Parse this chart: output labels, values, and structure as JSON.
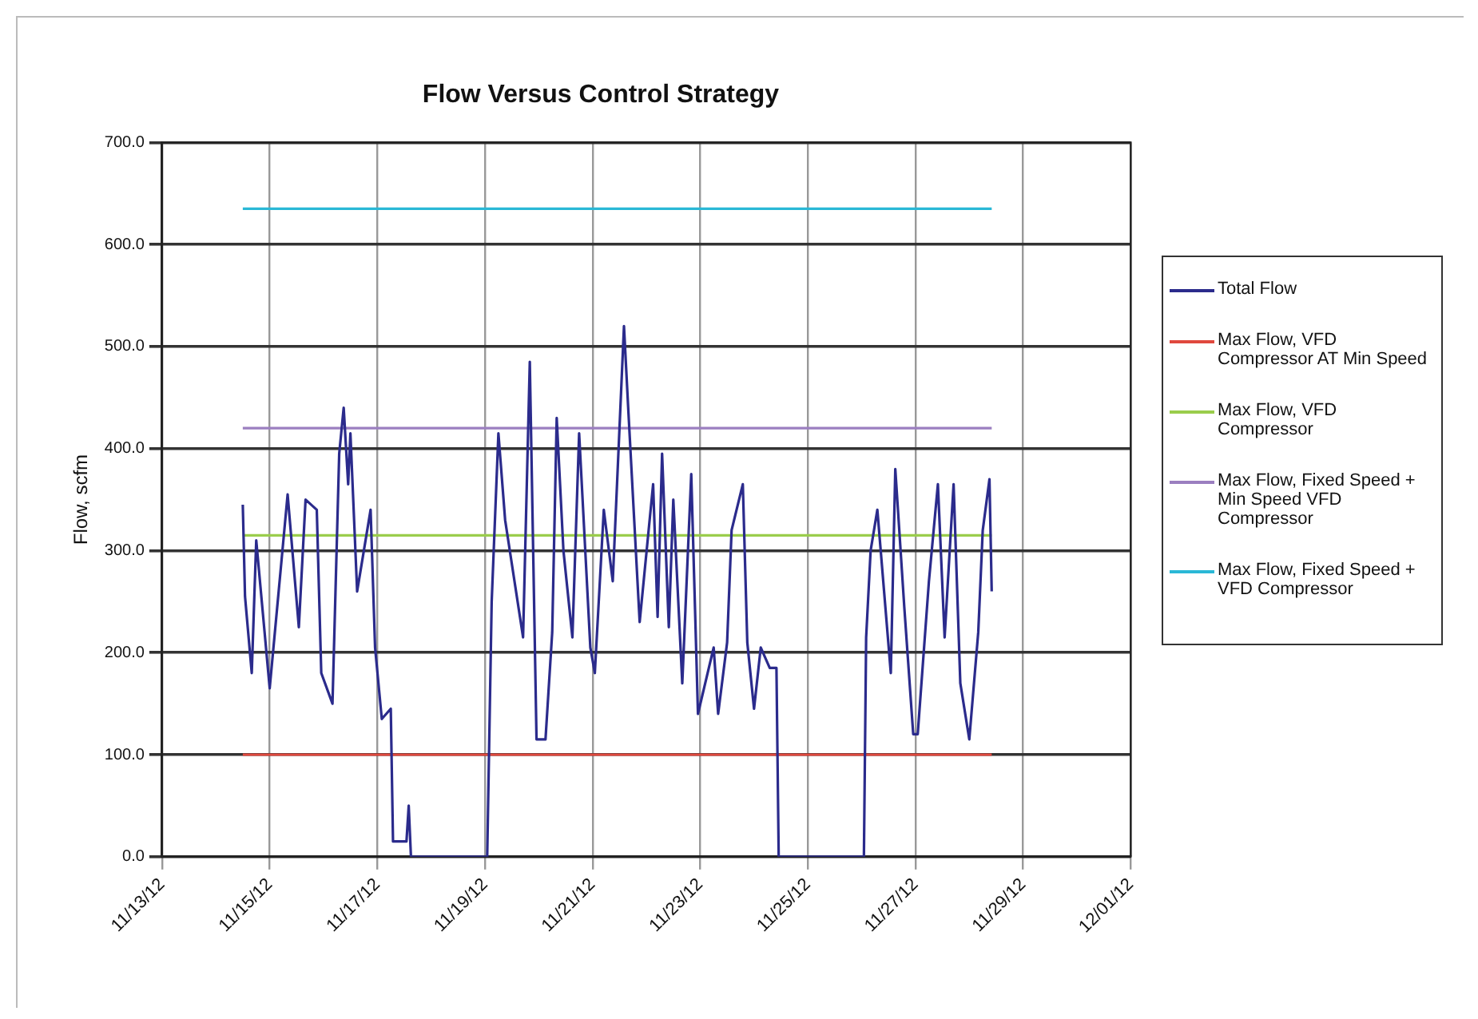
{
  "chart_data": {
    "type": "line",
    "title": "Flow Versus Control Strategy",
    "ylabel": "Flow, scfm",
    "marker": "none",
    "grid": true,
    "legend": "right",
    "xlim": [
      "--11-13",
      "--12-01"
    ],
    "xticks": [
      {
        "value": "--11-13",
        "label": "11/13/12"
      },
      {
        "value": "--11-15",
        "label": "11/15/12"
      },
      {
        "value": "--11-17",
        "label": "11/17/12"
      },
      {
        "value": "--11-19",
        "label": "11/19/12"
      },
      {
        "value": "--11-21",
        "label": "11/21/12"
      },
      {
        "value": "--11-23",
        "label": "11/23/12"
      },
      {
        "value": "--11-25",
        "label": "11/25/12"
      },
      {
        "value": "--11-27",
        "label": "11/27/12"
      },
      {
        "value": "--11-29",
        "label": "11/29/12"
      },
      {
        "value": "--12-01",
        "label": "12/01/12"
      }
    ],
    "ylim": [
      0,
      700
    ],
    "yticks": [
      {
        "value": 0,
        "label": "0.0"
      },
      {
        "value": 100,
        "label": "100.0"
      },
      {
        "value": 200,
        "label": "200.0"
      },
      {
        "value": 300,
        "label": "300.0"
      },
      {
        "value": 400,
        "label": "400.0"
      },
      {
        "value": 500,
        "label": "500.0"
      },
      {
        "value": 600,
        "label": "600.0"
      },
      {
        "value": 700,
        "label": "700.0"
      }
    ],
    "series": [
      {
        "name": "Total Flow",
        "color": "#2b2b8c",
        "x": [
          "--11-14T12:00",
          "--11-14T13:00",
          "--11-14T16:00",
          "--11-14T18:00",
          "--11-15T00:00",
          "--11-15T04:00",
          "--11-15T08:00",
          "--11-15T13:00",
          "--11-15T16:00",
          "--11-15T21:00",
          "--11-15T23:00",
          "--11-16T04:00",
          "--11-16T07:00",
          "--11-16T09:00",
          "--11-16T11:00",
          "--11-16T12:00",
          "--11-16T15:00",
          "--11-16T21:00",
          "--11-16T23:00",
          "--11-17T02:00",
          "--11-17T06:00",
          "--11-17T07:00",
          "--11-17T13:00",
          "--11-17T14:00",
          "--11-17T15:00",
          "--11-19T01:00",
          "--11-19T03:00",
          "--11-19T06:00",
          "--11-19T09:00",
          "--11-19T17:00",
          "--11-19T20:00",
          "--11-19T23:00",
          "--11-20T03:00",
          "--11-20T06:00",
          "--11-20T08:00",
          "--11-20T11:00",
          "--11-20T15:00",
          "--11-20T18:00",
          "--11-20T23:00",
          "--11-21T01:00",
          "--11-21T05:00",
          "--11-21T09:00",
          "--11-21T14:00",
          "--11-21T16:00",
          "--11-21T21:00",
          "--11-22T03:00",
          "--11-22T05:00",
          "--11-22T07:00",
          "--11-22T10:00",
          "--11-22T12:00",
          "--11-22T16:00",
          "--11-22T20:00",
          "--11-22T23:00",
          "--11-23T06:00",
          "--11-23T08:00",
          "--11-23T12:00",
          "--11-23T14:00",
          "--11-23T19:00",
          "--11-23T21:00",
          "--11-24T00:00",
          "--11-24T03:00",
          "--11-24T07:00",
          "--11-24T10:00",
          "--11-24T11:00",
          "--11-26T01:00",
          "--11-26T02:00",
          "--11-26T04:00",
          "--11-26T07:00",
          "--11-26T13:00",
          "--11-26T15:00",
          "--11-26T19:00",
          "--11-26T23:00",
          "--11-27T01:00",
          "--11-27T06:00",
          "--11-27T10:00",
          "--11-27T13:00",
          "--11-27T17:00",
          "--11-27T20:00",
          "--11-28T00:00",
          "--11-28T04:00",
          "--11-28T06:00",
          "--11-28T09:00",
          "--11-28T10:00"
        ],
        "values": [
          345,
          255,
          180,
          310,
          165,
          260,
          355,
          225,
          350,
          340,
          180,
          150,
          395,
          440,
          365,
          415,
          260,
          340,
          205,
          135,
          145,
          15,
          15,
          50,
          0,
          0,
          250,
          415,
          330,
          215,
          485,
          115,
          115,
          220,
          430,
          300,
          215,
          415,
          205,
          180,
          340,
          270,
          520,
          435,
          230,
          365,
          235,
          395,
          225,
          350,
          170,
          375,
          140,
          205,
          140,
          210,
          320,
          365,
          210,
          145,
          205,
          185,
          185,
          0,
          0,
          215,
          300,
          340,
          180,
          380,
          245,
          120,
          120,
          270,
          365,
          215,
          365,
          170,
          115,
          220,
          320,
          370,
          260
        ]
      },
      {
        "name": "Max Flow, VFD Compressor AT Min Speed",
        "color": "#e0493e",
        "x": [
          "--11-14T12:00",
          "--11-28T10:00"
        ],
        "values": [
          100,
          100
        ]
      },
      {
        "name": "Max Flow, VFD Compressor",
        "color": "#9acd4c",
        "x": [
          "--11-14T12:00",
          "--11-28T10:00"
        ],
        "values": [
          315,
          315
        ]
      },
      {
        "name": "Max Flow, Fixed Speed + Min Speed VFD Compressor",
        "color": "#9b7fc0",
        "x": [
          "--11-14T12:00",
          "--11-28T10:00"
        ],
        "values": [
          420,
          420
        ]
      },
      {
        "name": "Max Flow, Fixed Speed + VFD Compressor",
        "color": "#2ab8d6",
        "x": [
          "--11-14T12:00",
          "--11-28T10:00"
        ],
        "values": [
          635,
          635
        ]
      }
    ]
  }
}
